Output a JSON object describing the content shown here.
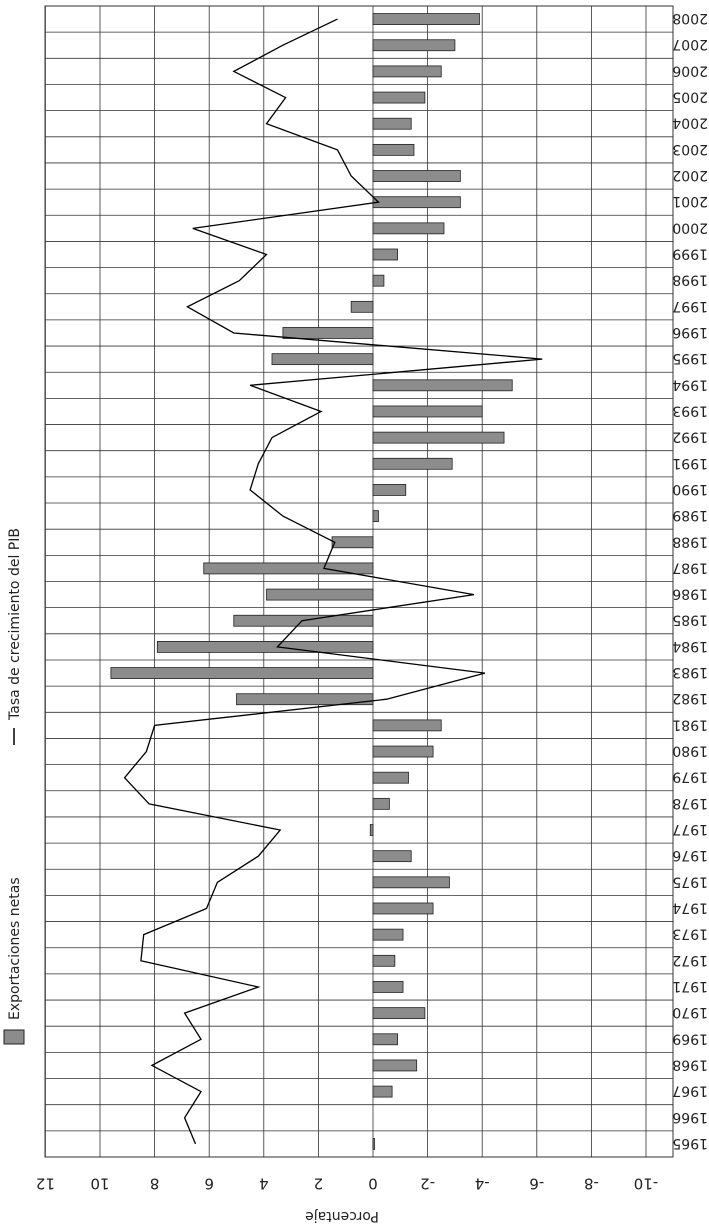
{
  "chart_data": {
    "type": "bar",
    "orientation": "horizontal, page rotated 90 degrees",
    "years": [
      "1965",
      "1966",
      "1967",
      "1968",
      "1969",
      "1970",
      "1971",
      "1972",
      "1973",
      "1974",
      "1975",
      "1976",
      "1977",
      "1978",
      "1979",
      "1980",
      "1981",
      "1982",
      "1983",
      "1984",
      "1985",
      "1986",
      "1987",
      "1988",
      "1989",
      "1990",
      "1991",
      "1992",
      "1993",
      "1994",
      "1995",
      "1996",
      "1997",
      "1998",
      "1999",
      "2000",
      "2001",
      "2002",
      "2003",
      "2004",
      "2005",
      "2006",
      "2007",
      "2008"
    ],
    "series": [
      {
        "name": "Exportaciones netas",
        "kind": "bar",
        "values": [
          -0.05,
          0,
          -0.7,
          -1.6,
          -0.9,
          -1.9,
          -1.1,
          -0.8,
          -1.1,
          -2.2,
          -2.8,
          -1.4,
          0.1,
          -0.6,
          -1.3,
          -2.2,
          -2.5,
          5.0,
          9.6,
          7.9,
          5.1,
          3.9,
          6.2,
          1.5,
          -0.2,
          -1.2,
          -2.9,
          -4.8,
          -4.0,
          -5.1,
          3.7,
          3.3,
          0.8,
          -0.4,
          -0.9,
          -2.6,
          -3.2,
          -3.2,
          -1.5,
          -1.4,
          -1.9,
          -2.5,
          -3.0,
          -3.9
        ]
      },
      {
        "name": "Tasa de crecimiento del PIB",
        "kind": "line",
        "values": [
          6.5,
          6.9,
          6.3,
          8.1,
          6.3,
          6.9,
          4.2,
          8.5,
          8.4,
          6.1,
          5.7,
          4.2,
          3.4,
          8.2,
          9.1,
          8.3,
          8.0,
          -0.5,
          -4.1,
          3.5,
          2.6,
          -3.7,
          1.8,
          1.4,
          3.3,
          4.5,
          4.2,
          3.7,
          1.9,
          4.5,
          -6.2,
          5.1,
          6.8,
          4.9,
          3.9,
          6.6,
          -0.2,
          0.8,
          1.3,
          3.9,
          3.2,
          5.1,
          3.3,
          1.3
        ]
      }
    ],
    "xlabel": "Porcentaje",
    "ylabel": "",
    "xlim": [
      -10,
      12
    ],
    "ticks": [
      "12",
      "10",
      "8",
      "6",
      "4",
      "2",
      "0",
      "-2",
      "-4",
      "-6",
      "-8",
      "-10"
    ],
    "legend_position": "top",
    "grid": true,
    "colors": {
      "bar": "#8c8c8c",
      "line": "#000000",
      "grid": "#333333"
    }
  }
}
